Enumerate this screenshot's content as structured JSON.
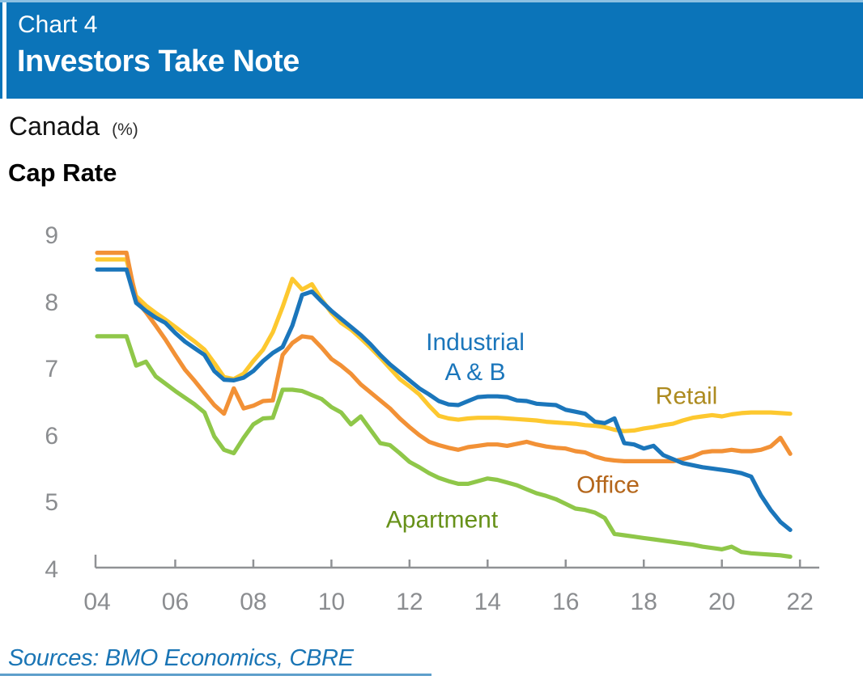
{
  "header": {
    "chart_label": "Chart 4",
    "title": "Investors Take Note"
  },
  "subtitle": {
    "region": "Canada",
    "unit": "(%)",
    "measure": "Cap Rate"
  },
  "source": "Sources: BMO Economics, CBRE",
  "colors": {
    "banner_blue": "#0b74b9",
    "hairline_blue": "#8cc0e2",
    "axis_gray": "#909295",
    "tick_text_gray": "#8b8d90",
    "source_blue": "#1a75b5"
  },
  "chart_data": {
    "type": "line",
    "title": "Investors Take Note",
    "region": "Canada",
    "unit": "%",
    "measure": "Cap Rate",
    "x_unit": "quarterly",
    "x_start": 2004.0,
    "x_step": 0.25,
    "xlim": [
      2004,
      2022
    ],
    "ylim": [
      4,
      9
    ],
    "y_ticks": [
      "9",
      "8",
      "7",
      "6",
      "5",
      "4"
    ],
    "y_tick_values": [
      9,
      8,
      7,
      6,
      5,
      4
    ],
    "x_tick_labels": [
      "04",
      "06",
      "08",
      "10",
      "12",
      "14",
      "16",
      "18",
      "20",
      "22"
    ],
    "x_tick_years": [
      2004,
      2006,
      2008,
      2010,
      2012,
      2014,
      2016,
      2018,
      2020,
      2022
    ],
    "grid": false,
    "legend": "inline-annotations",
    "series": [
      {
        "name": "Apartment",
        "label": "Apartment",
        "color": "#8fc749",
        "label_color": "#679119",
        "values": [
          7.5,
          7.5,
          7.5,
          7.5,
          7.06,
          7.12,
          6.9,
          6.79,
          6.68,
          6.58,
          6.48,
          6.36,
          6.0,
          5.8,
          5.75,
          5.98,
          6.18,
          6.27,
          6.28,
          6.7,
          6.7,
          6.68,
          6.62,
          6.56,
          6.44,
          6.36,
          6.18,
          6.3,
          6.1,
          5.9,
          5.87,
          5.75,
          5.62,
          5.54,
          5.45,
          5.38,
          5.33,
          5.29,
          5.29,
          5.33,
          5.37,
          5.35,
          5.31,
          5.27,
          5.21,
          5.15,
          5.11,
          5.06,
          4.99,
          4.92,
          4.9,
          4.86,
          4.78,
          4.54,
          4.52,
          4.5,
          4.48,
          4.46,
          4.44,
          4.42,
          4.4,
          4.38,
          4.35,
          4.33,
          4.31,
          4.35,
          4.27,
          4.25,
          4.24,
          4.23,
          4.22,
          4.2
        ]
      },
      {
        "name": "Retail",
        "label": "Retail",
        "color": "#fdc82f",
        "label_color": "#ad8b20",
        "values": [
          8.65,
          8.65,
          8.65,
          8.65,
          8.1,
          7.96,
          7.85,
          7.75,
          7.64,
          7.53,
          7.42,
          7.3,
          7.1,
          6.89,
          6.86,
          6.94,
          7.13,
          7.3,
          7.56,
          7.94,
          8.36,
          8.2,
          8.28,
          8.05,
          7.85,
          7.7,
          7.6,
          7.47,
          7.33,
          7.18,
          7.02,
          6.86,
          6.75,
          6.63,
          6.46,
          6.31,
          6.27,
          6.25,
          6.27,
          6.28,
          6.28,
          6.28,
          6.27,
          6.26,
          6.25,
          6.24,
          6.22,
          6.21,
          6.2,
          6.19,
          6.17,
          6.16,
          6.14,
          6.1,
          6.08,
          6.09,
          6.12,
          6.14,
          6.17,
          6.19,
          6.24,
          6.28,
          6.3,
          6.32,
          6.3,
          6.33,
          6.35,
          6.36,
          6.36,
          6.36,
          6.35,
          6.34
        ]
      },
      {
        "name": "Office",
        "label": "Office",
        "color": "#f29136",
        "label_color": "#b4661b",
        "values": [
          8.75,
          8.75,
          8.75,
          8.75,
          8.04,
          7.86,
          7.66,
          7.45,
          7.22,
          7.0,
          6.83,
          6.65,
          6.47,
          6.34,
          6.72,
          6.42,
          6.46,
          6.53,
          6.54,
          7.22,
          7.4,
          7.5,
          7.48,
          7.33,
          7.16,
          7.06,
          6.94,
          6.78,
          6.66,
          6.54,
          6.42,
          6.27,
          6.14,
          6.02,
          5.92,
          5.87,
          5.83,
          5.8,
          5.84,
          5.86,
          5.88,
          5.88,
          5.86,
          5.89,
          5.92,
          5.88,
          5.85,
          5.83,
          5.82,
          5.78,
          5.76,
          5.7,
          5.66,
          5.64,
          5.63,
          5.63,
          5.63,
          5.63,
          5.63,
          5.63,
          5.66,
          5.7,
          5.76,
          5.78,
          5.78,
          5.8,
          5.78,
          5.78,
          5.8,
          5.85,
          5.98,
          5.74
        ]
      },
      {
        "name": "Industrial A & B",
        "label": "Industrial\nA & B",
        "color": "#1b76bb",
        "label_color": "#1b76bb",
        "values": [
          8.5,
          8.5,
          8.5,
          8.5,
          8.0,
          7.88,
          7.78,
          7.7,
          7.55,
          7.42,
          7.32,
          7.22,
          6.98,
          6.85,
          6.84,
          6.88,
          6.98,
          7.13,
          7.25,
          7.34,
          7.66,
          8.12,
          8.17,
          8.02,
          7.88,
          7.76,
          7.64,
          7.52,
          7.38,
          7.22,
          7.08,
          6.96,
          6.84,
          6.72,
          6.63,
          6.53,
          6.48,
          6.47,
          6.53,
          6.59,
          6.6,
          6.6,
          6.59,
          6.54,
          6.53,
          6.49,
          6.48,
          6.47,
          6.4,
          6.37,
          6.34,
          6.22,
          6.2,
          6.27,
          5.9,
          5.88,
          5.82,
          5.86,
          5.72,
          5.66,
          5.6,
          5.57,
          5.54,
          5.52,
          5.5,
          5.48,
          5.45,
          5.4,
          5.12,
          4.9,
          4.72,
          4.6
        ]
      }
    ]
  }
}
